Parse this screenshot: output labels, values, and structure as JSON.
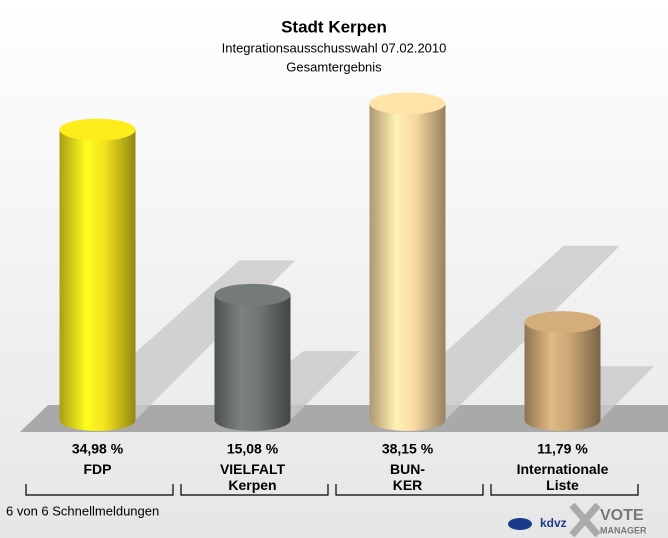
{
  "chart_data": {
    "type": "bar3d",
    "title": "Stadt Kerpen",
    "subtitle": "Integrationsausschusswahl 07.02.2010",
    "subtitle2": "Gesamtergebnis",
    "categories": [
      "FDP",
      "VIELFALT\nKerpen",
      "BUN-\nKER",
      "Internationale\nListe"
    ],
    "values": [
      34.98,
      15.08,
      38.15,
      11.79
    ],
    "value_labels": [
      "34,98 %",
      "15,08 %",
      "38,15 %",
      "11,79 %"
    ],
    "colors": [
      "#f2e21c",
      "#6f7571",
      "#f8d8a0",
      "#c9a675"
    ],
    "footer": "6 von 6 Schnellmeldungen",
    "logo_left": "kdvz",
    "logo_right": "VOTE",
    "logo_right_sub": "MANAGER"
  }
}
